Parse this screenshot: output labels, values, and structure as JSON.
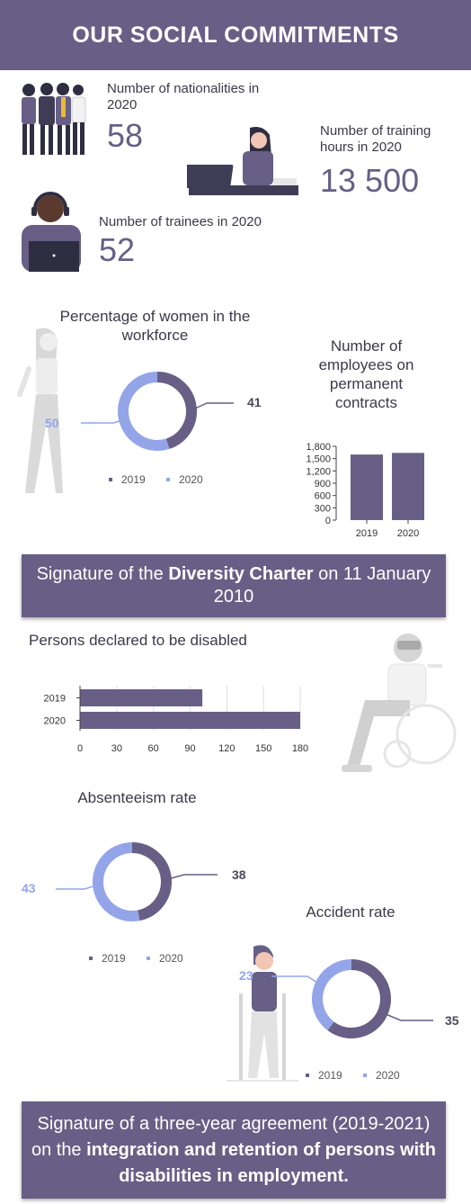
{
  "header": {
    "title": "OUR SOCIAL COMMITMENTS"
  },
  "stats": {
    "nationalities": {
      "label": "Number of nationalities in 2020",
      "value": "58"
    },
    "training": {
      "label": "Number of training hours in 2020",
      "value": "13 500"
    },
    "trainees": {
      "label": "Number of trainees in 2020",
      "value": "52"
    }
  },
  "banners": {
    "diversity": {
      "before": "Signature of the ",
      "bold": "Diversity Charter",
      "after": " on 11 January 2010"
    },
    "agreement": {
      "before": "Signature of a three-year agreement (2019-2021) on the ",
      "bold": "integration and retention of persons with disabilities in employment."
    }
  },
  "colors": {
    "primary": "#675f86",
    "secondary": "#93a5e8",
    "grid": "#dddddd"
  },
  "chart_data": [
    {
      "id": "women",
      "type": "pie",
      "title": "Percentage of women in the workforce",
      "slices": [
        {
          "name": "2019",
          "value": 41
        },
        {
          "name": "2020",
          "value": 50
        }
      ],
      "legend": [
        "2019",
        "2020"
      ]
    },
    {
      "id": "permanent",
      "type": "bar",
      "title": "Number of employees on permanent contracts",
      "categories": [
        "2019",
        "2020"
      ],
      "values": [
        1600,
        1640
      ],
      "yticks": [
        "0",
        "300",
        "600",
        "900",
        "1,200",
        "1,500",
        "1,800"
      ],
      "ylim": [
        0,
        1800
      ]
    },
    {
      "id": "disabled",
      "type": "bar",
      "orientation": "horizontal",
      "title": "Persons declared to be disabled",
      "categories": [
        "2019",
        "2020"
      ],
      "values": [
        100,
        180
      ],
      "xticks": [
        "0",
        "30",
        "60",
        "90",
        "120",
        "150",
        "180"
      ],
      "xlim": [
        0,
        180
      ]
    },
    {
      "id": "absenteeism",
      "type": "pie",
      "title": "Absenteeism rate",
      "slices": [
        {
          "name": "2019",
          "value": 38
        },
        {
          "name": "2020",
          "value": 43
        }
      ],
      "legend": [
        "2019",
        "2020"
      ]
    },
    {
      "id": "accident",
      "type": "pie",
      "title": "Accident rate",
      "slices": [
        {
          "name": "2019",
          "value": 35
        },
        {
          "name": "2020",
          "value": 23
        }
      ],
      "legend": [
        "2019",
        "2020"
      ]
    }
  ]
}
